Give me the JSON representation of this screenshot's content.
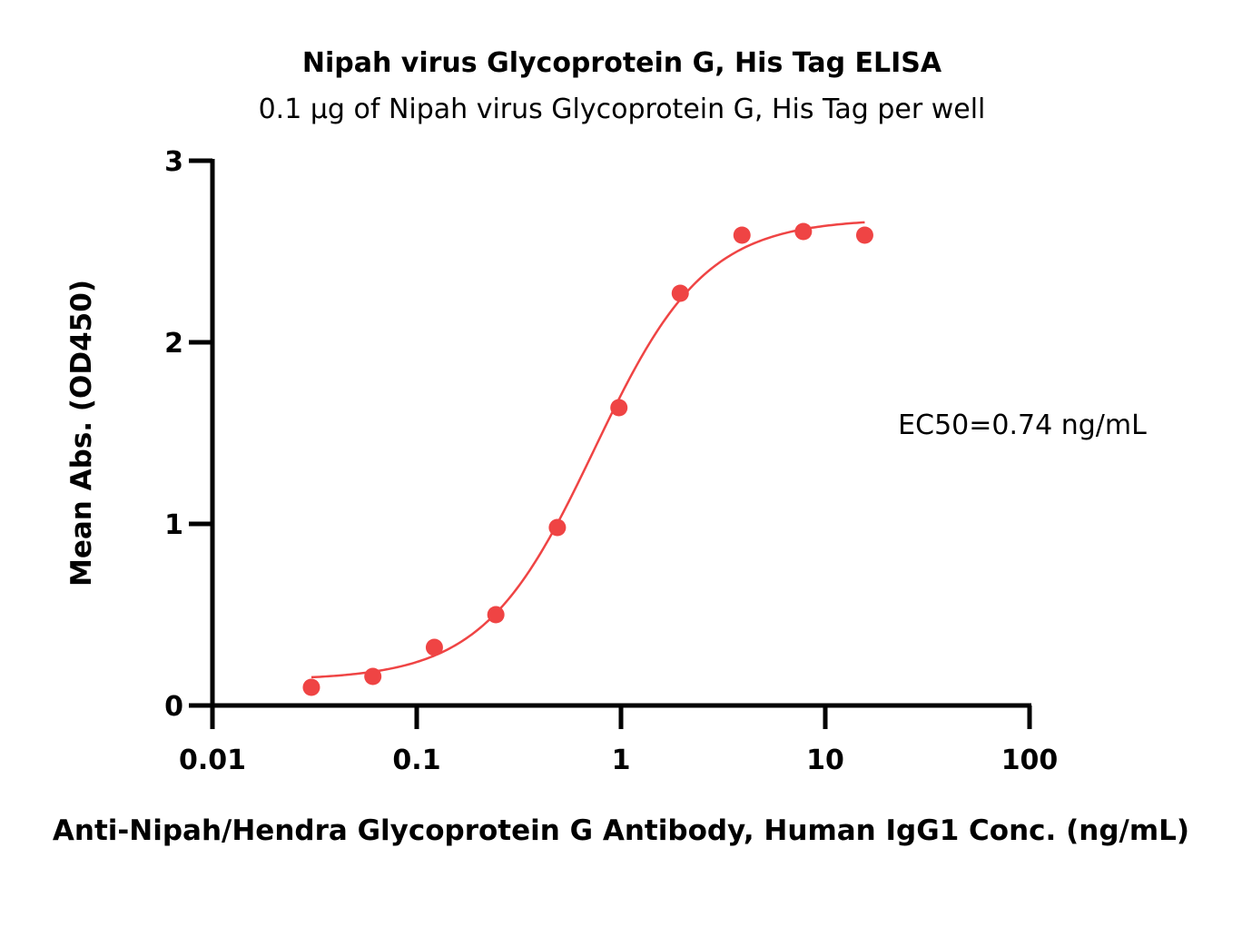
{
  "chart_data": {
    "type": "scatter",
    "title": "Nipah virus Glycoprotein G, His Tag ELISA",
    "subtitle": "0.1 μg of Nipah virus Glycoprotein G, His Tag per well",
    "xlabel": "Anti-Nipah/Hendra Glycoprotein G Antibody, Human IgG1 Conc. (ng/mL)",
    "ylabel": "Mean Abs. (OD450)",
    "x_scale": "log",
    "xlim": [
      0.01,
      100
    ],
    "ylim": [
      0,
      3
    ],
    "x_ticks": [
      0.01,
      0.1,
      1,
      10,
      100
    ],
    "x_tick_labels": [
      "0.01",
      "0.1",
      "1",
      "10",
      "100"
    ],
    "y_ticks": [
      0,
      1,
      2,
      3
    ],
    "y_tick_labels": [
      "0",
      "1",
      "2",
      "3"
    ],
    "grid": false,
    "annotation": "EC50=0.74 ng/mL",
    "color": "#ef4444",
    "series": [
      {
        "x": [
          0.0305,
          0.061,
          0.122,
          0.244,
          0.488,
          0.977,
          1.95,
          3.91,
          7.81,
          15.6
        ],
        "y": [
          0.1,
          0.16,
          0.32,
          0.5,
          0.98,
          1.64,
          2.27,
          2.59,
          2.61,
          2.59
        ]
      }
    ],
    "fit_curve": {
      "model": "4PL",
      "bottom": 0.14,
      "top": 2.68,
      "ec50": 0.74,
      "hill": 1.6,
      "x_range": [
        0.0305,
        15.6
      ]
    }
  }
}
